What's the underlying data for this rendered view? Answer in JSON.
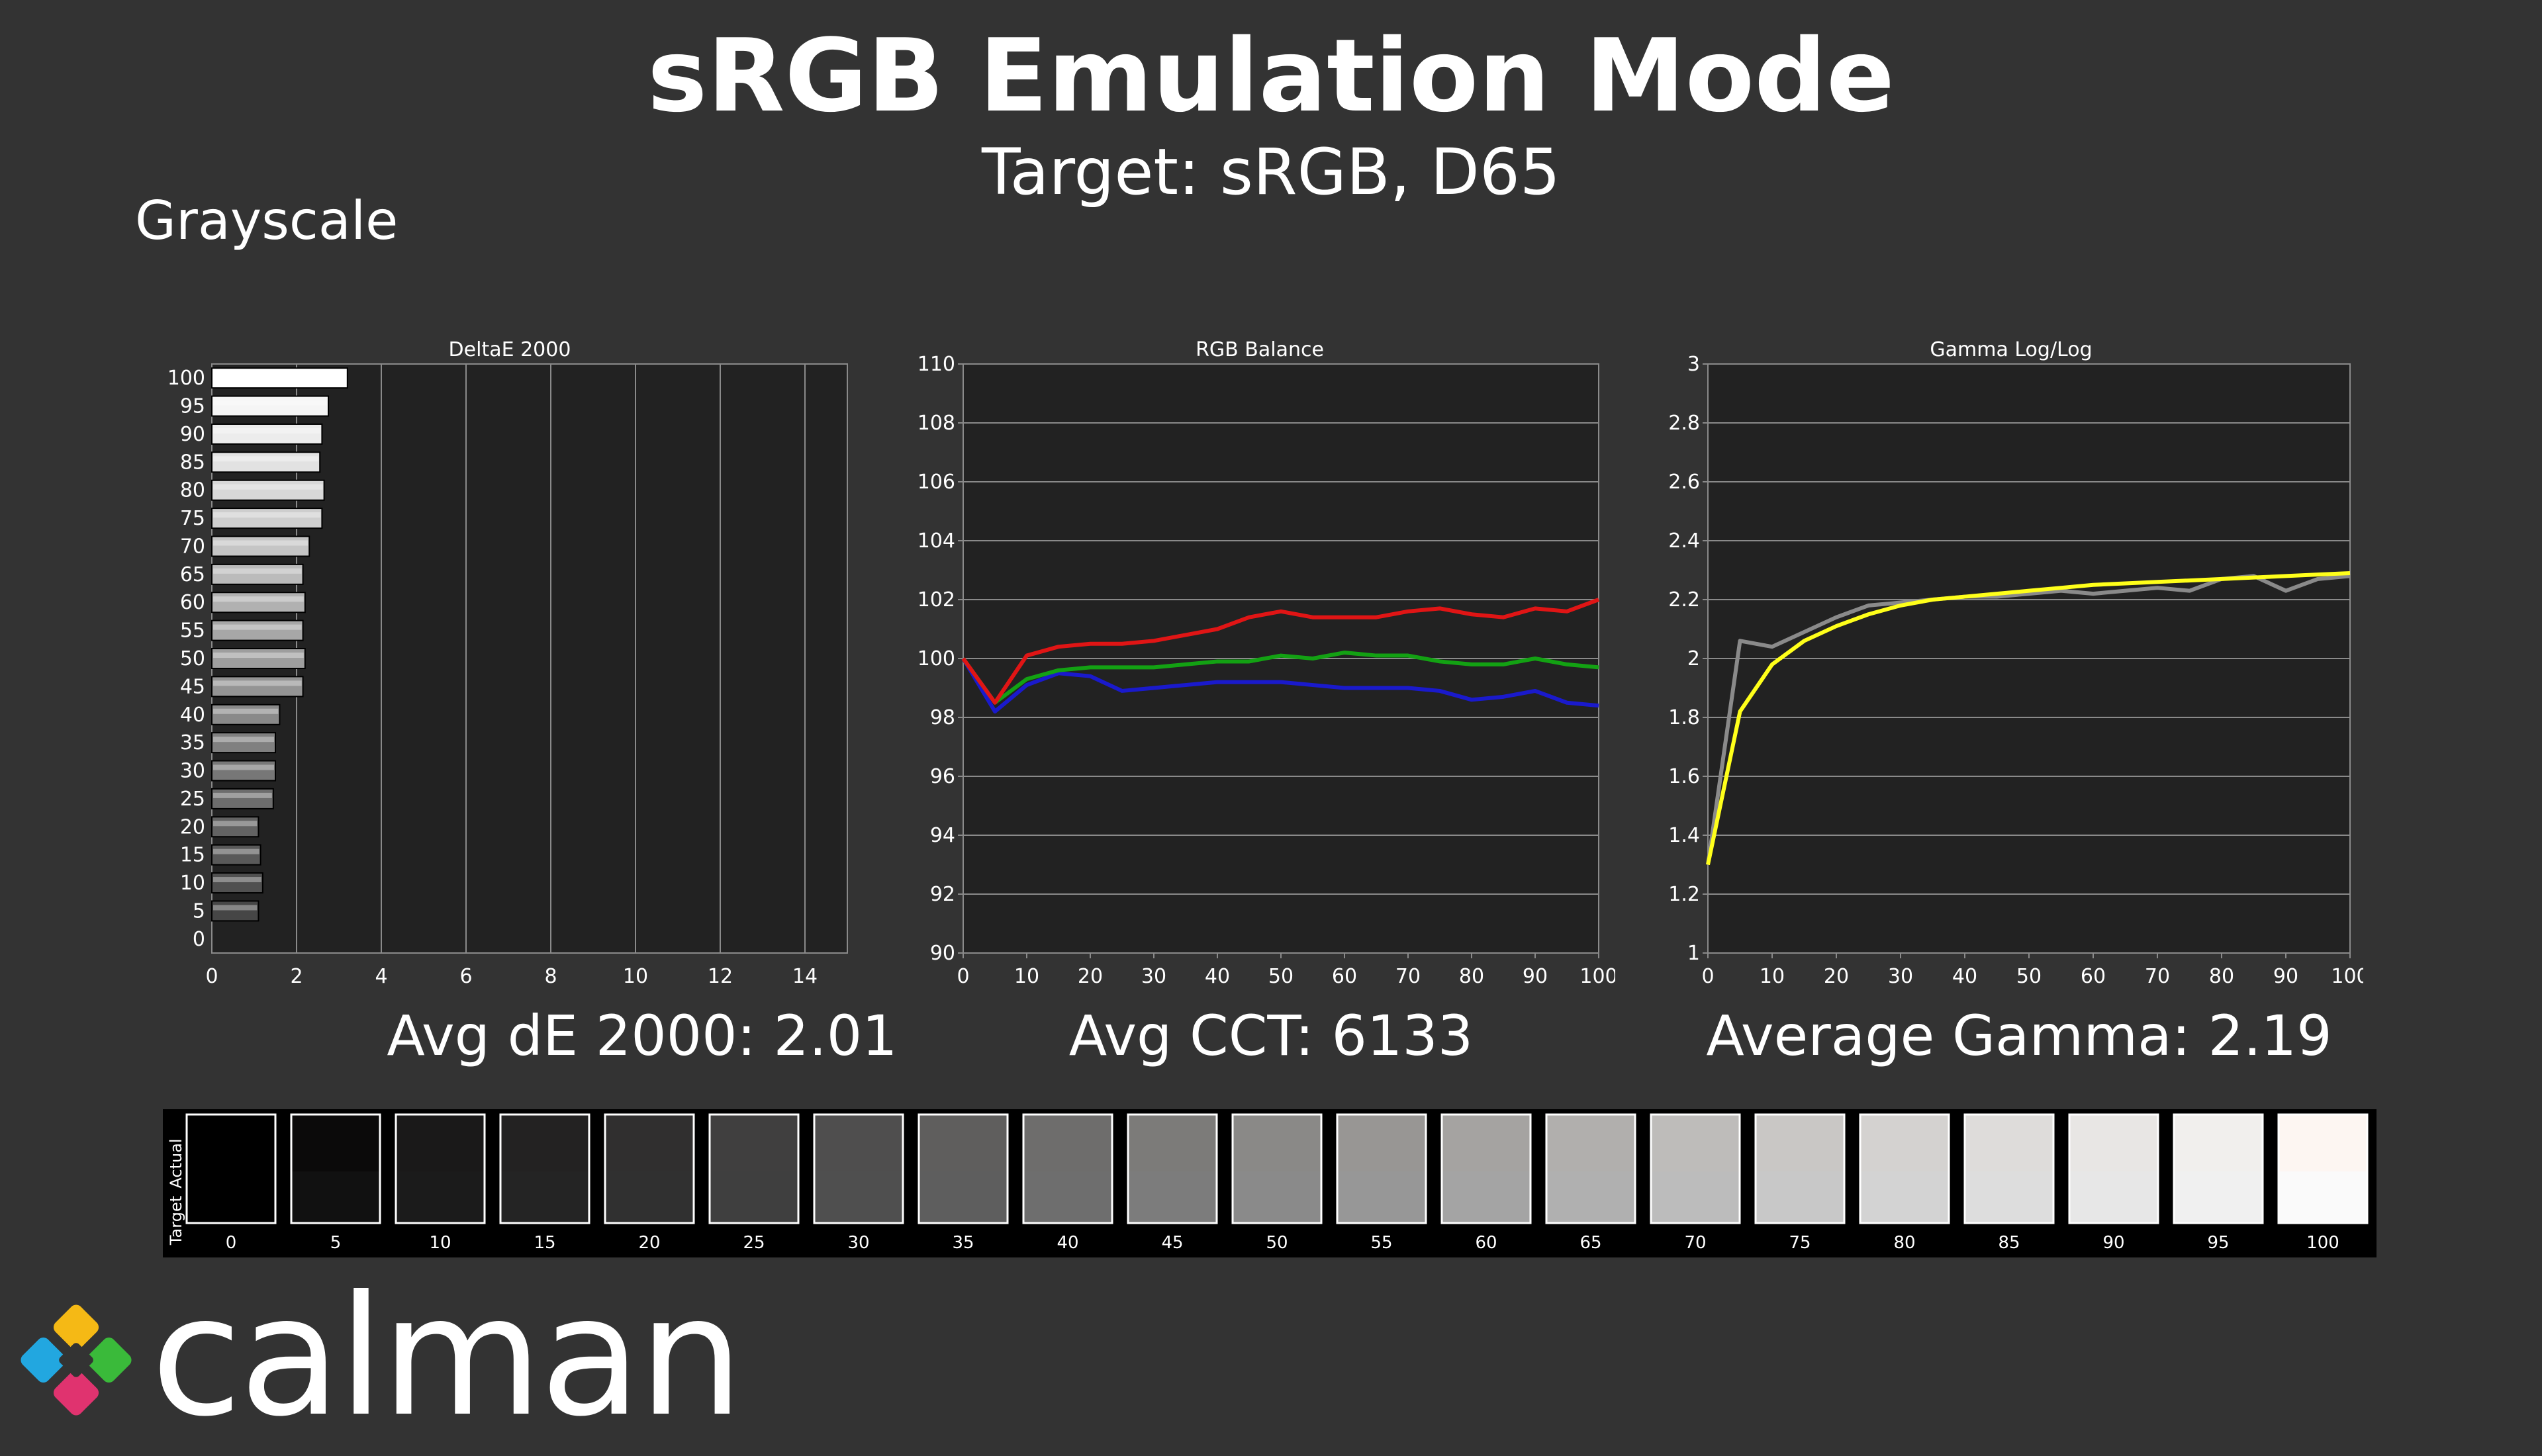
{
  "header": {
    "title": "sRGB Emulation Mode",
    "subtitle": "Target: sRGB, D65",
    "section": "Grayscale"
  },
  "summaries": {
    "de": "Avg dE 2000: 2.01",
    "cct": "Avg CCT: 6133",
    "gamma": "Average Gamma: 2.19"
  },
  "swatches": {
    "actual_label": "Actual",
    "target_label": "Target",
    "levels": [
      "0",
      "5",
      "10",
      "15",
      "20",
      "25",
      "30",
      "35",
      "40",
      "45",
      "50",
      "55",
      "60",
      "65",
      "70",
      "75",
      "80",
      "85",
      "90",
      "95",
      "100"
    ],
    "actual_colors": [
      "#000000",
      "#0b0a0a",
      "#1a1919",
      "#232222",
      "#302f2f",
      "#403f3f",
      "#4f4e4e",
      "#5f5e5d",
      "#6e6d6c",
      "#7c7b79",
      "#8a8987",
      "#989694",
      "#a5a3a1",
      "#b1afad",
      "#bebcba",
      "#c9c7c5",
      "#d4d2d0",
      "#dedcda",
      "#e8e6e4",
      "#f1efed",
      "#fdf6f2"
    ],
    "target_colors": [
      "#000000",
      "#111111",
      "#1b1b1b",
      "#242424",
      "#303030",
      "#3f3f3f",
      "#4f4f4f",
      "#5e5e5e",
      "#6e6e6e",
      "#7c7c7c",
      "#8a8a8a",
      "#979797",
      "#a4a4a4",
      "#b0b0b0",
      "#bcbcbc",
      "#c8c8c8",
      "#d3d3d3",
      "#dddddd",
      "#e7e7e7",
      "#f0f0f0",
      "#fafafa"
    ]
  },
  "brand": {
    "name": "calman"
  },
  "chart_data": [
    {
      "type": "bar",
      "title": "DeltaE 2000",
      "orientation": "horizontal",
      "categories": [
        "0",
        "5",
        "10",
        "15",
        "20",
        "25",
        "30",
        "35",
        "40",
        "45",
        "50",
        "55",
        "60",
        "65",
        "70",
        "75",
        "80",
        "85",
        "90",
        "95",
        "100"
      ],
      "values": [
        0.0,
        1.1,
        1.2,
        1.15,
        1.1,
        1.45,
        1.5,
        1.5,
        1.6,
        2.15,
        2.2,
        2.15,
        2.2,
        2.15,
        2.3,
        2.6,
        2.65,
        2.55,
        2.6,
        2.75,
        3.2
      ],
      "xlim": [
        0,
        15
      ],
      "xticks": [
        "0",
        "2",
        "4",
        "6",
        "8",
        "10",
        "12",
        "14"
      ],
      "grid": true
    },
    {
      "type": "line",
      "title": "RGB Balance",
      "x": [
        0,
        5,
        10,
        15,
        20,
        25,
        30,
        35,
        40,
        45,
        50,
        55,
        60,
        65,
        70,
        75,
        80,
        85,
        90,
        95,
        100
      ],
      "series": [
        {
          "color": "#e01515",
          "values": [
            100,
            98.5,
            100.1,
            100.4,
            100.5,
            100.5,
            100.6,
            100.8,
            101.0,
            101.4,
            101.6,
            101.4,
            101.4,
            101.4,
            101.6,
            101.7,
            101.5,
            101.4,
            101.7,
            101.6,
            102.0
          ]
        },
        {
          "color": "#13a113",
          "values": [
            100,
            98.5,
            99.3,
            99.6,
            99.7,
            99.7,
            99.7,
            99.8,
            99.9,
            99.9,
            100.1,
            100.0,
            100.2,
            100.1,
            100.1,
            99.9,
            99.8,
            99.8,
            100.0,
            99.8,
            99.7
          ]
        },
        {
          "color": "#1a1acc",
          "values": [
            100,
            98.2,
            99.1,
            99.5,
            99.4,
            98.9,
            99.0,
            99.1,
            99.2,
            99.2,
            99.2,
            99.1,
            99.0,
            99.0,
            99.0,
            98.9,
            98.6,
            98.7,
            98.9,
            98.5,
            98.4
          ]
        }
      ],
      "ylim": [
        90,
        110
      ],
      "yticks": [
        "90",
        "92",
        "94",
        "96",
        "98",
        "100",
        "102",
        "104",
        "106",
        "108",
        "110"
      ],
      "xticks": [
        "0",
        "10",
        "20",
        "30",
        "40",
        "50",
        "60",
        "70",
        "80",
        "90",
        "100"
      ],
      "grid": true
    },
    {
      "type": "line",
      "title": "Gamma Log/Log",
      "x": [
        0,
        5,
        10,
        15,
        20,
        25,
        30,
        35,
        40,
        45,
        50,
        55,
        60,
        65,
        70,
        75,
        80,
        85,
        90,
        95,
        100
      ],
      "series": [
        {
          "color": "#ffff1a",
          "values": [
            1.3,
            1.82,
            1.98,
            2.06,
            2.11,
            2.15,
            2.18,
            2.2,
            2.21,
            2.22,
            2.23,
            2.24,
            2.25,
            2.255,
            2.26,
            2.265,
            2.27,
            2.275,
            2.28,
            2.285,
            2.29
          ]
        },
        {
          "color": "#8a8a8a",
          "values": [
            1.3,
            2.06,
            2.04,
            2.09,
            2.14,
            2.18,
            2.19,
            2.2,
            2.21,
            2.21,
            2.22,
            2.23,
            2.22,
            2.23,
            2.24,
            2.23,
            2.27,
            2.28,
            2.23,
            2.27,
            2.28
          ]
        }
      ],
      "ylim": [
        1,
        3
      ],
      "yticks": [
        "1",
        "1.2",
        "1.4",
        "1.6",
        "1.8",
        "2",
        "2.2",
        "2.4",
        "2.6",
        "2.8",
        "3"
      ],
      "xticks": [
        "0",
        "10",
        "20",
        "30",
        "40",
        "50",
        "60",
        "70",
        "80",
        "90",
        "100"
      ],
      "grid": true
    }
  ]
}
